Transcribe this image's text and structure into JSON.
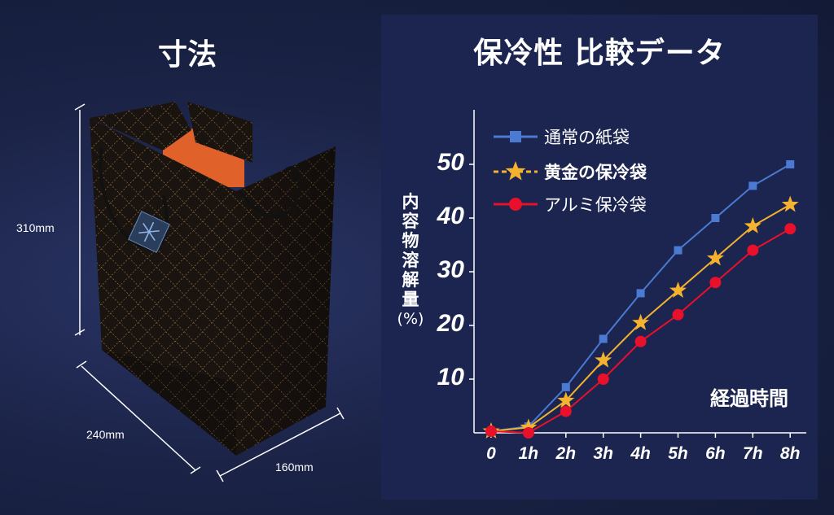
{
  "left": {
    "title": "寸法",
    "dimensions": {
      "height": "310mm",
      "width": "240mm",
      "depth": "160mm"
    }
  },
  "colors": {
    "paper_bag": "#4a7ad2",
    "gold_bag": "#f4b22e",
    "alu_bag": "#e8102a",
    "bag_body": "#1a1410",
    "bag_lattice": "#b88a4a",
    "bag_lining": "#e0622a"
  },
  "chart_data": {
    "type": "line",
    "title": "保冷性 比較データ",
    "ylabel": "内容物溶解量",
    "ylabel_unit": "(%)",
    "xlabel": "経過時間",
    "categories": [
      "0",
      "1h",
      "2h",
      "3h",
      "4h",
      "5h",
      "6h",
      "7h",
      "8h"
    ],
    "y_ticks": [
      "10",
      "20",
      "30",
      "40",
      "50"
    ],
    "ylim": [
      0,
      55
    ],
    "legend_position": "top-left",
    "series": [
      {
        "name": "通常の紙袋",
        "marker": "square",
        "bold": false,
        "values": [
          0.3,
          1.2,
          8.5,
          17.5,
          26,
          34,
          40,
          46,
          50
        ]
      },
      {
        "name": "黄金の保冷袋",
        "marker": "star",
        "bold": true,
        "values": [
          0.3,
          1,
          6,
          13.5,
          20.5,
          26.5,
          32.5,
          38.5,
          42.5
        ]
      },
      {
        "name": "アルミ保冷袋",
        "marker": "circle",
        "bold": false,
        "values": [
          0.3,
          0,
          4,
          10,
          17,
          22,
          28,
          34,
          38
        ]
      }
    ]
  }
}
